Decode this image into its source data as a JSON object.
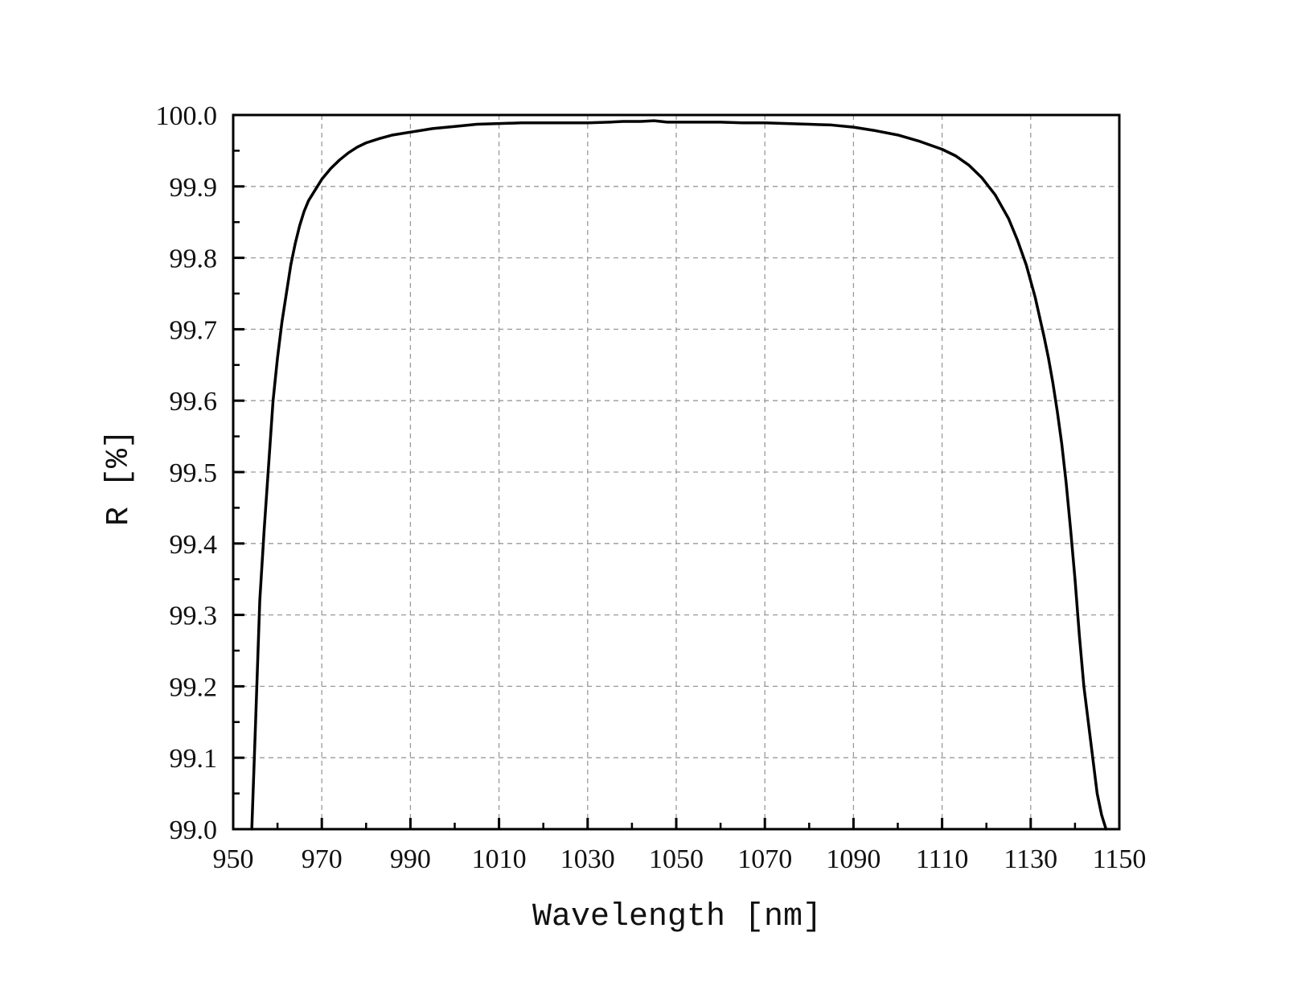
{
  "chart_data": {
    "type": "line",
    "title": "",
    "xlabel": "Wavelength [nm]",
    "ylabel": "R [%]",
    "xlim": [
      950,
      1150
    ],
    "ylim": [
      99.0,
      100.0
    ],
    "x_ticks": [
      "950",
      "970",
      "990",
      "1010",
      "1030",
      "1050",
      "1070",
      "1090",
      "1110",
      "1130",
      "1150"
    ],
    "y_ticks": [
      "99.0",
      "99.1",
      "99.2",
      "99.3",
      "99.4",
      "99.5",
      "99.6",
      "99.7",
      "99.8",
      "99.9",
      "100.0"
    ],
    "grid": true,
    "line_color": "#000000",
    "series": [
      {
        "x": [
          954.2,
          955,
          956,
          957,
          958,
          959,
          960,
          961,
          962,
          963,
          964,
          965,
          966,
          967,
          968,
          969,
          970,
          972,
          974,
          976,
          978,
          980,
          983,
          986,
          990,
          995,
          1000,
          1005,
          1010,
          1015,
          1020,
          1025,
          1030,
          1035,
          1038,
          1042,
          1045,
          1048,
          1050,
          1055,
          1060,
          1065,
          1070,
          1075,
          1080,
          1085,
          1090,
          1095,
          1100,
          1105,
          1110,
          1113,
          1116,
          1119,
          1122,
          1125,
          1127,
          1129,
          1131,
          1133,
          1134,
          1135,
          1136,
          1137,
          1138,
          1139,
          1140,
          1141,
          1142,
          1143,
          1144,
          1145,
          1146,
          1147
        ],
        "y": [
          99.0,
          99.14,
          99.32,
          99.42,
          99.51,
          99.6,
          99.66,
          99.71,
          99.75,
          99.79,
          99.82,
          99.845,
          99.865,
          99.88,
          99.89,
          99.9,
          99.91,
          99.925,
          99.937,
          99.947,
          99.955,
          99.961,
          99.967,
          99.972,
          99.976,
          99.981,
          99.984,
          99.987,
          99.988,
          99.989,
          99.989,
          99.989,
          99.989,
          99.99,
          99.991,
          99.991,
          99.992,
          99.99,
          99.99,
          99.99,
          99.99,
          99.989,
          99.989,
          99.988,
          99.987,
          99.986,
          99.983,
          99.978,
          99.972,
          99.963,
          99.952,
          99.943,
          99.93,
          99.912,
          99.888,
          99.855,
          99.825,
          99.79,
          99.745,
          99.69,
          99.66,
          99.625,
          99.585,
          99.54,
          99.485,
          99.42,
          99.35,
          99.27,
          99.2,
          99.15,
          99.1,
          99.05,
          99.02,
          99.0
        ]
      }
    ]
  }
}
